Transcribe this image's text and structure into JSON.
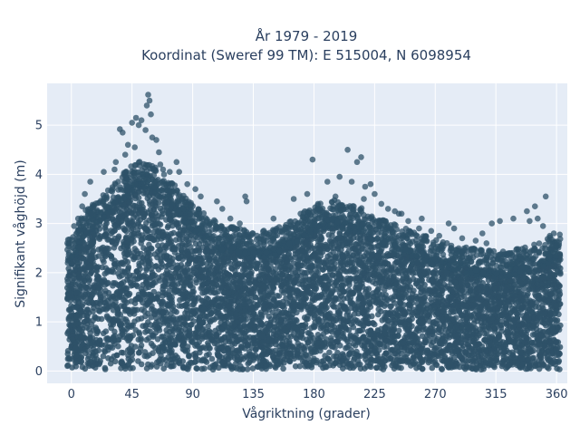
{
  "chart_data": {
    "type": "scatter",
    "title_line1": "År 1979 - 2019",
    "title_line2": "Koordinat (Sweref 99 TM): E 515004, N 6098954",
    "xlabel": "Vågriktning (grader)",
    "ylabel": "Signifikant våghöjd (m)",
    "xlim": [
      -18,
      368
    ],
    "ylim": [
      -0.25,
      5.85
    ],
    "xticks": [
      0,
      45,
      90,
      135,
      180,
      225,
      270,
      315,
      360
    ],
    "yticks": [
      0,
      1,
      2,
      3,
      4,
      5
    ],
    "grid": true,
    "marker_color": "#2e5168",
    "dense_band": [
      {
        "x": 0,
        "top": 2.3
      },
      {
        "x": 10,
        "top": 2.9
      },
      {
        "x": 20,
        "top": 3.1
      },
      {
        "x": 30,
        "top": 3.4
      },
      {
        "x": 40,
        "top": 3.7
      },
      {
        "x": 50,
        "top": 3.9
      },
      {
        "x": 60,
        "top": 3.8
      },
      {
        "x": 70,
        "top": 3.6
      },
      {
        "x": 80,
        "top": 3.3
      },
      {
        "x": 90,
        "top": 3.0
      },
      {
        "x": 100,
        "top": 2.8
      },
      {
        "x": 110,
        "top": 2.6
      },
      {
        "x": 120,
        "top": 2.55
      },
      {
        "x": 135,
        "top": 2.45
      },
      {
        "x": 150,
        "top": 2.5
      },
      {
        "x": 165,
        "top": 2.7
      },
      {
        "x": 180,
        "top": 3.0
      },
      {
        "x": 195,
        "top": 3.1
      },
      {
        "x": 210,
        "top": 3.0
      },
      {
        "x": 225,
        "top": 2.8
      },
      {
        "x": 240,
        "top": 2.6
      },
      {
        "x": 255,
        "top": 2.45
      },
      {
        "x": 270,
        "top": 2.3
      },
      {
        "x": 285,
        "top": 2.2
      },
      {
        "x": 300,
        "top": 2.1
      },
      {
        "x": 315,
        "top": 2.05
      },
      {
        "x": 330,
        "top": 2.1
      },
      {
        "x": 345,
        "top": 2.2
      },
      {
        "x": 360,
        "top": 2.4
      }
    ],
    "outliers": [
      [
        57,
        5.62
      ],
      [
        58,
        5.5
      ],
      [
        56,
        5.4
      ],
      [
        59,
        5.22
      ],
      [
        48,
        5.15
      ],
      [
        52,
        5.1
      ],
      [
        45,
        5.05
      ],
      [
        50,
        5.0
      ],
      [
        36,
        4.92
      ],
      [
        38,
        4.85
      ],
      [
        55,
        4.9
      ],
      [
        60,
        4.75
      ],
      [
        63,
        4.7
      ],
      [
        42,
        4.6
      ],
      [
        47,
        4.55
      ],
      [
        40,
        4.4
      ],
      [
        33,
        4.25
      ],
      [
        24,
        4.05
      ],
      [
        65,
        4.45
      ],
      [
        66,
        4.2
      ],
      [
        73,
        4.05
      ],
      [
        78,
        4.25
      ],
      [
        80,
        4.05
      ],
      [
        32,
        4.1
      ],
      [
        14,
        3.85
      ],
      [
        10,
        3.6
      ],
      [
        8,
        3.35
      ],
      [
        5,
        3.1
      ],
      [
        2,
        2.95
      ],
      [
        -3,
        2.6
      ],
      [
        68,
        4.1
      ],
      [
        86,
        3.8
      ],
      [
        92,
        3.7
      ],
      [
        96,
        3.55
      ],
      [
        108,
        3.45
      ],
      [
        112,
        3.3
      ],
      [
        118,
        3.1
      ],
      [
        125,
        3.0
      ],
      [
        129,
        3.55
      ],
      [
        130,
        3.45
      ],
      [
        150,
        3.1
      ],
      [
        165,
        3.5
      ],
      [
        170,
        3.2
      ],
      [
        175,
        3.6
      ],
      [
        187,
        3.0
      ],
      [
        179,
        4.3
      ],
      [
        190,
        3.85
      ],
      [
        199,
        3.95
      ],
      [
        205,
        4.5
      ],
      [
        212,
        4.25
      ],
      [
        215,
        4.35
      ],
      [
        208,
        3.85
      ],
      [
        218,
        3.75
      ],
      [
        217,
        3.5
      ],
      [
        225,
        3.6
      ],
      [
        230,
        3.4
      ],
      [
        240,
        3.25
      ],
      [
        243,
        3.2
      ],
      [
        250,
        3.05
      ],
      [
        258,
        2.9
      ],
      [
        260,
        3.1
      ],
      [
        267,
        2.85
      ],
      [
        273,
        2.75
      ],
      [
        280,
        3.0
      ],
      [
        284,
        2.9
      ],
      [
        290,
        2.7
      ],
      [
        300,
        2.65
      ],
      [
        305,
        2.8
      ],
      [
        308,
        2.6
      ],
      [
        312,
        3.0
      ],
      [
        318,
        3.05
      ],
      [
        328,
        3.1
      ],
      [
        338,
        3.25
      ],
      [
        340,
        3.05
      ],
      [
        344,
        3.35
      ],
      [
        346,
        3.1
      ],
      [
        350,
        2.95
      ],
      [
        352,
        3.55
      ],
      [
        355,
        2.75
      ],
      [
        358,
        2.8
      ],
      [
        245,
        3.2
      ],
      [
        235,
        3.3
      ],
      [
        222,
        3.8
      ],
      [
        196,
        3.55
      ],
      [
        183,
        3.4
      ]
    ]
  }
}
